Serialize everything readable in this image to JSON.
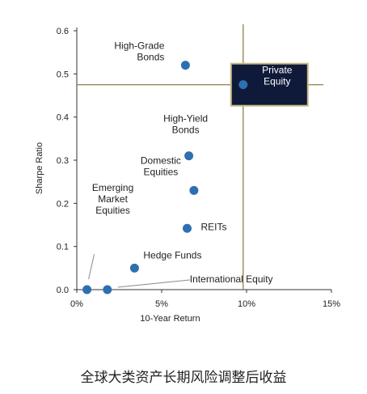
{
  "caption": "全球大类资产长期风险调整后收益",
  "chart_data": {
    "type": "scatter",
    "xlabel": "10-Year Return",
    "ylabel": "Sharpe Ratio",
    "xlim": [
      0,
      15
    ],
    "ylim": [
      0,
      0.6
    ],
    "xticks": [
      {
        "value": 0,
        "label": "0%"
      },
      {
        "value": 5,
        "label": "5%"
      },
      {
        "value": 10,
        "label": "10%"
      },
      {
        "value": 15,
        "label": "15%"
      }
    ],
    "yticks": [
      {
        "value": 0,
        "label": "0.0"
      },
      {
        "value": 0.1,
        "label": "0.1"
      },
      {
        "value": 0.2,
        "label": "0.2"
      },
      {
        "value": 0.3,
        "label": "0.3"
      },
      {
        "value": 0.4,
        "label": "0.4"
      },
      {
        "value": 0.5,
        "label": "0.5"
      },
      {
        "value": 0.6,
        "label": "0.6"
      }
    ],
    "grid": false,
    "reference_lines": {
      "x": 9.8,
      "y": 0.475
    },
    "points": [
      {
        "label": "High-Grade Bonds",
        "lines": [
          "High-Grade",
          "Bonds"
        ],
        "x": 6.4,
        "y": 0.52,
        "highlight": false
      },
      {
        "label": "Private Equity",
        "lines": [
          "Private",
          "Equity"
        ],
        "x": 9.8,
        "y": 0.475,
        "highlight": true
      },
      {
        "label": "High-Yield Bonds",
        "lines": [
          "High-Yield",
          "Bonds"
        ],
        "x": 6.6,
        "y": 0.31,
        "highlight": false
      },
      {
        "label": "Domestic Equities",
        "lines": [
          "Domestic",
          "Equities"
        ],
        "x": 6.9,
        "y": 0.23,
        "highlight": false
      },
      {
        "label": "REITs",
        "lines": [
          "REITs"
        ],
        "x": 6.5,
        "y": 0.142,
        "highlight": false
      },
      {
        "label": "Hedge Funds",
        "lines": [
          "Hedge Funds"
        ],
        "x": 3.4,
        "y": 0.05,
        "highlight": false
      },
      {
        "label": "Emerging Market Equities",
        "lines": [
          "Emerging",
          "Market",
          "Equities"
        ],
        "x": 0.6,
        "y": 0.0,
        "highlight": false
      },
      {
        "label": "International Equity",
        "lines": [
          "International Equity"
        ],
        "x": 1.8,
        "y": 0.0,
        "highlight": false
      }
    ],
    "colors": {
      "point": "#2e6fb0",
      "reference_line": "#9a8a55",
      "highlight_box_fill": "#0f1a3a",
      "highlight_box_border": "#c8b887",
      "highlight_text": "#ffffff",
      "axis": "#333333",
      "label": "#222222",
      "leader": "#8a8a8a"
    }
  }
}
